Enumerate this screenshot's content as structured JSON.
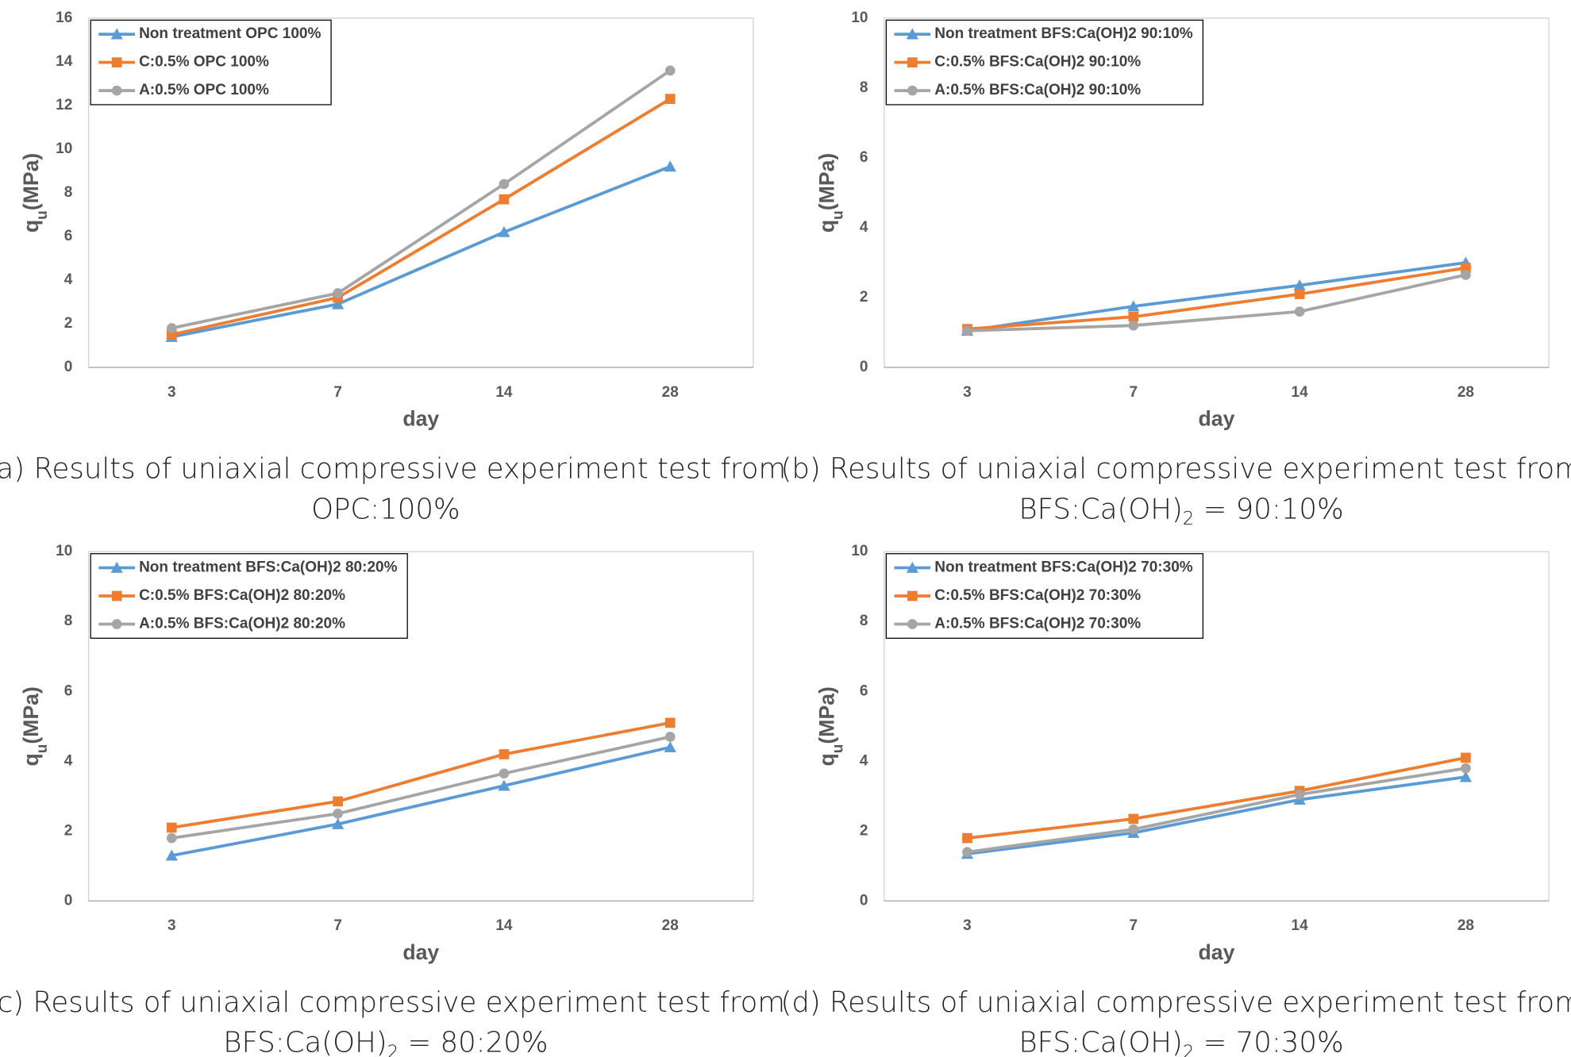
{
  "chart_data": [
    {
      "type": "line",
      "categories": [
        "3",
        "7",
        "14",
        "28"
      ],
      "xlabel": "day",
      "ylabel": [
        "q",
        "u",
        "(MPa)"
      ],
      "ylim": [
        0,
        16
      ],
      "yticks": [
        0,
        2,
        4,
        6,
        8,
        10,
        12,
        14,
        16
      ],
      "legend": "top-left",
      "caption": {
        "line1": "(a) Results of uniaxial compressive experiment test from",
        "line2": [
          "OPC:100%"
        ]
      },
      "series": [
        {
          "name": "Non treatment OPC 100%",
          "color": "#5b9bd5",
          "marker": "triangle",
          "values": [
            1.4,
            2.9,
            6.2,
            9.2
          ]
        },
        {
          "name": "C:0.5% OPC 100%",
          "color": "#ed7d31",
          "marker": "square",
          "values": [
            1.5,
            3.2,
            7.7,
            12.3
          ]
        },
        {
          "name": "A:0.5% OPC 100%",
          "color": "#a5a5a5",
          "marker": "circle",
          "values": [
            1.8,
            3.4,
            8.4,
            13.6
          ]
        }
      ]
    },
    {
      "type": "line",
      "categories": [
        "3",
        "7",
        "14",
        "28"
      ],
      "xlabel": "day",
      "ylabel": [
        "q",
        "u",
        "(MPa)"
      ],
      "ylim": [
        0,
        10
      ],
      "yticks": [
        0,
        2,
        4,
        6,
        8,
        10
      ],
      "legend": "top-left",
      "caption": {
        "line1": "(b) Results of uniaxial compressive experiment test from",
        "line2": [
          "BFS:Ca(OH)",
          "2",
          " = 90:10%"
        ]
      },
      "series": [
        {
          "name": "Non treatment BFS:Ca(OH)2 90:10%",
          "color": "#5b9bd5",
          "marker": "triangle",
          "values": [
            1.05,
            1.75,
            2.35,
            3.0
          ]
        },
        {
          "name": "C:0.5% BFS:Ca(OH)2 90:10%",
          "color": "#ed7d31",
          "marker": "square",
          "values": [
            1.1,
            1.45,
            2.1,
            2.85
          ]
        },
        {
          "name": "A:0.5% BFS:Ca(OH)2 90:10%",
          "color": "#a5a5a5",
          "marker": "circle",
          "values": [
            1.05,
            1.2,
            1.6,
            2.65
          ]
        }
      ]
    },
    {
      "type": "line",
      "categories": [
        "3",
        "7",
        "14",
        "28"
      ],
      "xlabel": "day",
      "ylabel": [
        "q",
        "u",
        "(MPa)"
      ],
      "ylim": [
        0,
        10
      ],
      "yticks": [
        0,
        2,
        4,
        6,
        8,
        10
      ],
      "legend": "top-left",
      "caption": {
        "line1": "(c) Results of uniaxial compressive experiment test from",
        "line2": [
          "BFS:Ca(OH)",
          "2",
          " = 80:20%"
        ]
      },
      "series": [
        {
          "name": "Non treatment BFS:Ca(OH)2 80:20%",
          "color": "#5b9bd5",
          "marker": "triangle",
          "values": [
            1.3,
            2.2,
            3.3,
            4.4
          ]
        },
        {
          "name": "C:0.5% BFS:Ca(OH)2 80:20%",
          "color": "#ed7d31",
          "marker": "square",
          "values": [
            2.1,
            2.85,
            4.2,
            5.1
          ]
        },
        {
          "name": "A:0.5% BFS:Ca(OH)2 80:20%",
          "color": "#a5a5a5",
          "marker": "circle",
          "values": [
            1.8,
            2.5,
            3.65,
            4.7
          ]
        }
      ]
    },
    {
      "type": "line",
      "categories": [
        "3",
        "7",
        "14",
        "28"
      ],
      "xlabel": "day",
      "ylabel": [
        "q",
        "u",
        "(MPa)"
      ],
      "ylim": [
        0,
        10
      ],
      "yticks": [
        0,
        2,
        4,
        6,
        8,
        10
      ],
      "legend": "top-left",
      "caption": {
        "line1": "(d) Results of uniaxial compressive experiment test from",
        "line2": [
          "BFS:Ca(OH)",
          "2",
          " = 70:30%"
        ]
      },
      "series": [
        {
          "name": "Non treatment BFS:Ca(OH)2 70:30%",
          "color": "#5b9bd5",
          "marker": "triangle",
          "values": [
            1.35,
            1.95,
            2.9,
            3.55
          ]
        },
        {
          "name": "C:0.5% BFS:Ca(OH)2 70:30%",
          "color": "#ed7d31",
          "marker": "square",
          "values": [
            1.8,
            2.35,
            3.15,
            4.1
          ]
        },
        {
          "name": "A:0.5% BFS:Ca(OH)2 70:30%",
          "color": "#a5a5a5",
          "marker": "circle",
          "values": [
            1.4,
            2.05,
            3.05,
            3.8
          ]
        }
      ]
    }
  ]
}
